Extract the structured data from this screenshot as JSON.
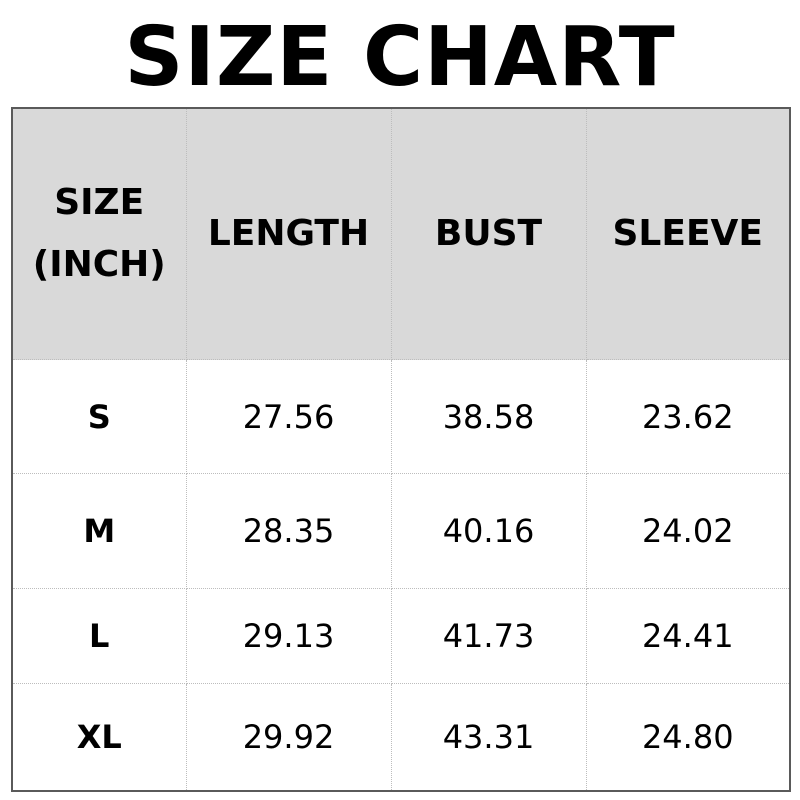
{
  "title": "SIZE CHART",
  "table": {
    "headers": [
      "SIZE\n(INCH)",
      "LENGTH",
      "BUST",
      "SLEEVE"
    ],
    "header_size_line1": "SIZE",
    "header_size_line2": "(INCH)",
    "rows": [
      [
        "S",
        "27.56",
        "38.58",
        "23.62"
      ],
      [
        "M",
        "28.35",
        "40.16",
        "24.02"
      ],
      [
        "L",
        "29.13",
        "41.73",
        "24.41"
      ],
      [
        "XL",
        "29.92",
        "43.31",
        "24.80"
      ]
    ]
  },
  "colors": {
    "header_bg": "#d9d9d9",
    "border": "#5a5a5a"
  }
}
